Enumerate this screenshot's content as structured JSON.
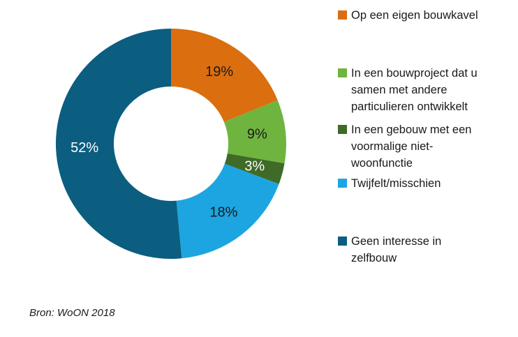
{
  "source_note": "Bron: WoON 2018",
  "chart_data": {
    "type": "pie",
    "subtype": "donut",
    "title": "",
    "legend_position": "right",
    "start_angle_deg": 0,
    "direction": "clockwise",
    "donut_hole_ratio": 0.5,
    "categories": [
      "Op een eigen bouwkavel",
      "In een bouwproject dat u\nsamen met andere\nparticulieren ontwikkelt",
      "In een gebouw met een\nvoormalige niet-\nwoonfunctie",
      "Twijfelt/misschien",
      "Geen interesse in\nzelfbouw"
    ],
    "values": [
      19,
      9,
      3,
      18,
      52
    ],
    "labels": [
      "19%",
      "9%",
      "3%",
      "18%",
      "52%"
    ],
    "colors": [
      "#DB6E0F",
      "#6FB43F",
      "#3F6A28",
      "#1CA5E1",
      "#0B5E80"
    ],
    "label_colors": [
      "#1A1A1A",
      "#1A1A1A",
      "#FFFFFF",
      "#1A1A1A",
      "#FFFFFF"
    ]
  }
}
